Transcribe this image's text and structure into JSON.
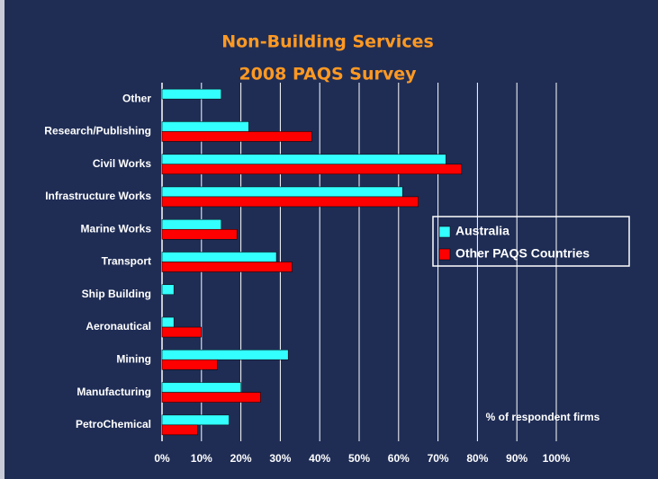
{
  "chart_data": {
    "type": "bar",
    "orientation": "horizontal",
    "title": [
      "Non-Building Services",
      "2008 PAQS Survey"
    ],
    "annotation": "% of respondent firms",
    "categories": [
      "Other",
      "Research/Publishing",
      "Civil Works",
      "Infrastructure Works",
      "Marine Works",
      "Transport",
      "Ship Building",
      "Aeronautical",
      "Mining",
      "Manufacturing",
      "PetroChemical"
    ],
    "series": [
      {
        "name": "Australia",
        "color": "#33ffff",
        "values": [
          15,
          22,
          72,
          61,
          15,
          29,
          3,
          3,
          32,
          20,
          17
        ]
      },
      {
        "name": "Other PAQS Countries",
        "color": "#ff0000",
        "values": [
          null,
          38,
          76,
          65,
          19,
          33,
          null,
          10,
          14,
          25,
          9
        ]
      }
    ],
    "xlim": [
      0,
      100
    ],
    "xticks": [
      {
        "value": 0,
        "label": "0%"
      },
      {
        "value": 10,
        "label": "10%"
      },
      {
        "value": 20,
        "label": "20%"
      },
      {
        "value": 30,
        "label": "30%"
      },
      {
        "value": 40,
        "label": "40%"
      },
      {
        "value": 50,
        "label": "50%"
      },
      {
        "value": 60,
        "label": "60%"
      },
      {
        "value": 70,
        "label": "70%"
      },
      {
        "value": 80,
        "label": "80%"
      },
      {
        "value": 90,
        "label": "90%"
      },
      {
        "value": 100,
        "label": "100%"
      }
    ],
    "grid": true,
    "legend": "right"
  }
}
